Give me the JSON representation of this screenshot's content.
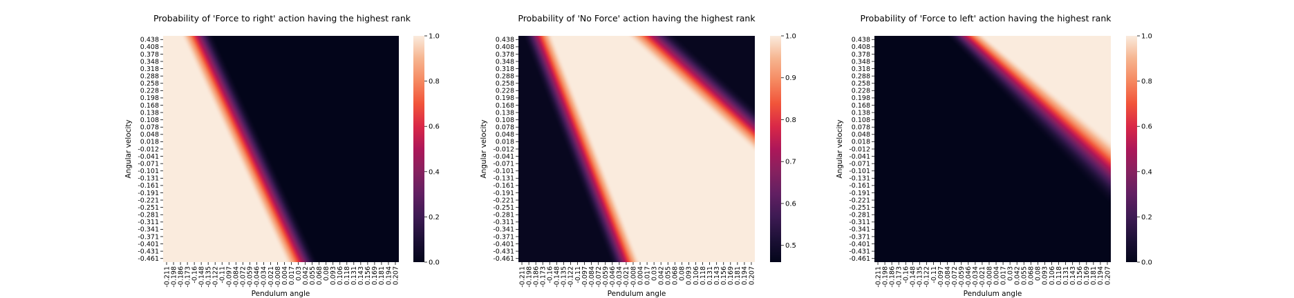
{
  "chart_data": [
    {
      "type": "heatmap",
      "title": "Probability of 'Force to right' action having the highest rank",
      "xlabel": "Pendulum angle",
      "ylabel": "Angular velocity",
      "x_tick_labels": [
        "-0.211",
        "-0.198",
        "-0.186",
        "-0.173",
        "-0.16",
        "-0.148",
        "-0.135",
        "-0.122",
        "-0.11",
        "-0.097",
        "-0.084",
        "-0.072",
        "-0.059",
        "-0.046",
        "-0.034",
        "-0.021",
        "-0.008",
        "0.004",
        "0.017",
        "0.03",
        "0.042",
        "0.055",
        "0.068",
        "0.08",
        "0.093",
        "0.106",
        "0.118",
        "0.131",
        "0.143",
        "0.156",
        "0.169",
        "0.181",
        "0.194",
        "0.207"
      ],
      "y_tick_labels": [
        "0.438",
        "0.408",
        "0.378",
        "0.348",
        "0.318",
        "0.288",
        "0.258",
        "0.228",
        "0.198",
        "0.168",
        "0.138",
        "0.108",
        "0.078",
        "0.048",
        "0.018",
        "-0.012",
        "-0.041",
        "-0.071",
        "-0.101",
        "-0.131",
        "-0.161",
        "-0.191",
        "-0.221",
        "-0.251",
        "-0.281",
        "-0.311",
        "-0.341",
        "-0.371",
        "-0.401",
        "-0.431",
        "-0.461"
      ],
      "colorbar": {
        "range": [
          0.0,
          1.0
        ],
        "ticks": [
          "0.0",
          "0.2",
          "0.4",
          "0.6",
          "0.8",
          "1.0"
        ]
      },
      "boundary": {
        "velocity": [
          0.438,
          -0.461
        ],
        "angle_at_boundary": [
          -0.15,
          0.035
        ]
      },
      "transition_width": 0.06,
      "high_side": "left"
    },
    {
      "type": "heatmap",
      "title": "Probability of 'No Force' action having the highest rank",
      "xlabel": "Pendulum angle",
      "ylabel": "Angular velocity",
      "x_tick_labels": [
        "-0.211",
        "-0.198",
        "-0.186",
        "-0.173",
        "-0.16",
        "-0.148",
        "-0.135",
        "-0.122",
        "-0.11",
        "-0.097",
        "-0.084",
        "-0.072",
        "-0.059",
        "-0.046",
        "-0.034",
        "-0.021",
        "-0.008",
        "0.004",
        "0.017",
        "0.03",
        "0.042",
        "0.055",
        "0.068",
        "0.08",
        "0.093",
        "0.106",
        "0.118",
        "0.131",
        "0.143",
        "0.156",
        "0.169",
        "0.181",
        "0.194",
        "0.207"
      ],
      "y_tick_labels": [
        "0.438",
        "0.408",
        "0.378",
        "0.348",
        "0.318",
        "0.288",
        "0.258",
        "0.228",
        "0.198",
        "0.168",
        "0.138",
        "0.108",
        "0.078",
        "0.048",
        "0.018",
        "-0.012",
        "-0.041",
        "-0.071",
        "-0.101",
        "-0.131",
        "-0.161",
        "-0.191",
        "-0.221",
        "-0.251",
        "-0.281",
        "-0.311",
        "-0.341",
        "-0.371",
        "-0.401",
        "-0.431",
        "-0.461"
      ],
      "colorbar": {
        "range": [
          0.46,
          1.0
        ],
        "ticks": [
          "0.5",
          "0.6",
          "0.7",
          "0.8",
          "0.9",
          "1.0"
        ]
      },
      "boundary_left": {
        "velocity": [
          0.438,
          -0.461
        ],
        "angle_at_boundary": [
          -0.195,
          -0.04
        ]
      },
      "boundary_right": {
        "velocity": [
          0.438,
          -0.461
        ],
        "angle_at_boundary": [
          -0.02,
          0.42
        ]
      },
      "min_value": 0.47
    },
    {
      "type": "heatmap",
      "title": "Probability of 'Force to left' action having the highest rank",
      "xlabel": "Pendulum angle",
      "ylabel": "Angular velocity",
      "x_tick_labels": [
        "-0.211",
        "-0.198",
        "-0.186",
        "-0.173",
        "-0.16",
        "-0.148",
        "-0.135",
        "-0.122",
        "-0.11",
        "-0.097",
        "-0.084",
        "-0.072",
        "-0.059",
        "-0.046",
        "-0.034",
        "-0.021",
        "-0.008",
        "0.004",
        "0.017",
        "0.03",
        "0.042",
        "0.055",
        "0.068",
        "0.08",
        "0.093",
        "0.106",
        "0.118",
        "0.131",
        "0.143",
        "0.156",
        "0.169",
        "0.181",
        "0.194",
        "0.207"
      ],
      "y_tick_labels": [
        "0.438",
        "0.408",
        "0.378",
        "0.348",
        "0.318",
        "0.288",
        "0.258",
        "0.228",
        "0.198",
        "0.168",
        "0.138",
        "0.108",
        "0.078",
        "0.048",
        "0.018",
        "-0.012",
        "-0.041",
        "-0.071",
        "-0.101",
        "-0.131",
        "-0.161",
        "-0.191",
        "-0.221",
        "-0.251",
        "-0.281",
        "-0.311",
        "-0.341",
        "-0.371",
        "-0.401",
        "-0.431",
        "-0.461"
      ],
      "colorbar": {
        "range": [
          0.0,
          1.0
        ],
        "ticks": [
          "0.0",
          "0.2",
          "0.4",
          "0.6",
          "0.8",
          "1.0"
        ]
      },
      "boundary": {
        "velocity": [
          0.438,
          -0.461
        ],
        "angle_at_boundary": [
          -0.085,
          0.3
        ]
      },
      "transition_width_top": 0.07,
      "transition_width_bottom": 0.17,
      "high_side": "right"
    }
  ]
}
